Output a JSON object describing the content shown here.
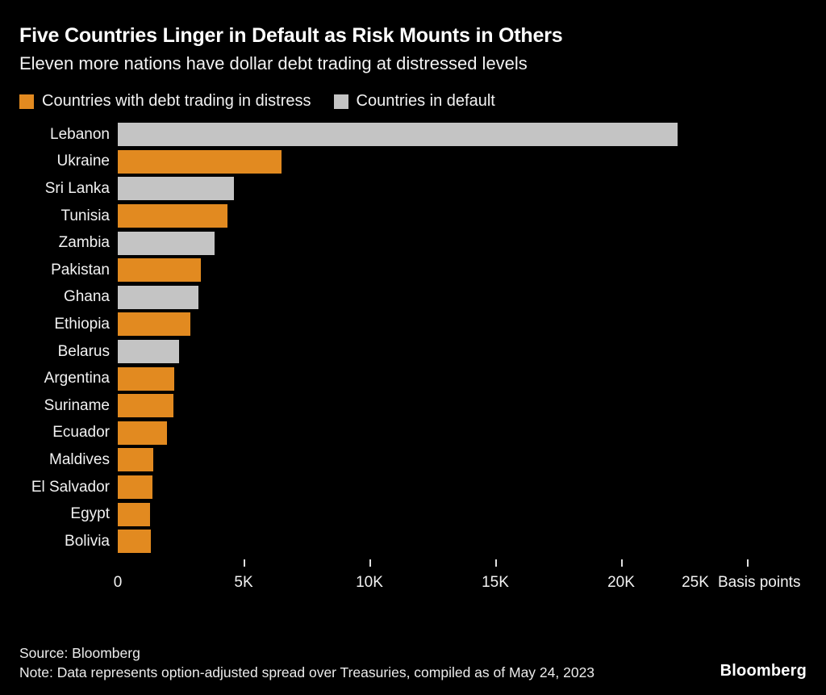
{
  "chart_data": {
    "type": "bar",
    "orientation": "horizontal",
    "title": "Five Countries Linger in Default as Risk Mounts in Others",
    "subtitle": "Eleven more nations have dollar debt trading at distressed levels",
    "legend": [
      {
        "key": "distress",
        "label": "Countries with debt trading in distress",
        "color": "#E28A20"
      },
      {
        "key": "default",
        "label": "Countries in default",
        "color": "#C4C4C4"
      }
    ],
    "categories": [
      "Lebanon",
      "Ukraine",
      "Sri Lanka",
      "Tunisia",
      "Zambia",
      "Pakistan",
      "Ghana",
      "Ethiopia",
      "Belarus",
      "Argentina",
      "Suriname",
      "Ecuador",
      "Maldives",
      "El Salvador",
      "Egypt",
      "Bolivia"
    ],
    "values": [
      22250,
      6500,
      4600,
      4350,
      3850,
      3300,
      3200,
      2900,
      2450,
      2250,
      2200,
      1950,
      1400,
      1380,
      1280,
      1320
    ],
    "groups": [
      "default",
      "distress",
      "default",
      "distress",
      "default",
      "distress",
      "default",
      "distress",
      "default",
      "distress",
      "distress",
      "distress",
      "distress",
      "distress",
      "distress",
      "distress"
    ],
    "xlabel": "Basis points",
    "xlim": [
      0,
      25000
    ],
    "xticks": [
      {
        "value": 0,
        "label": "0"
      },
      {
        "value": 5000,
        "label": "5K"
      },
      {
        "value": 10000,
        "label": "10K"
      },
      {
        "value": 15000,
        "label": "15K"
      },
      {
        "value": 20000,
        "label": "20K"
      },
      {
        "value": 25000,
        "label": "25K"
      }
    ],
    "grid": false,
    "legend_position": "top"
  },
  "footer": {
    "source": "Source: Bloomberg",
    "note": "Note: Data represents option-adjusted spread over Treasuries, compiled as of May 24, 2023",
    "logo": "Bloomberg"
  }
}
